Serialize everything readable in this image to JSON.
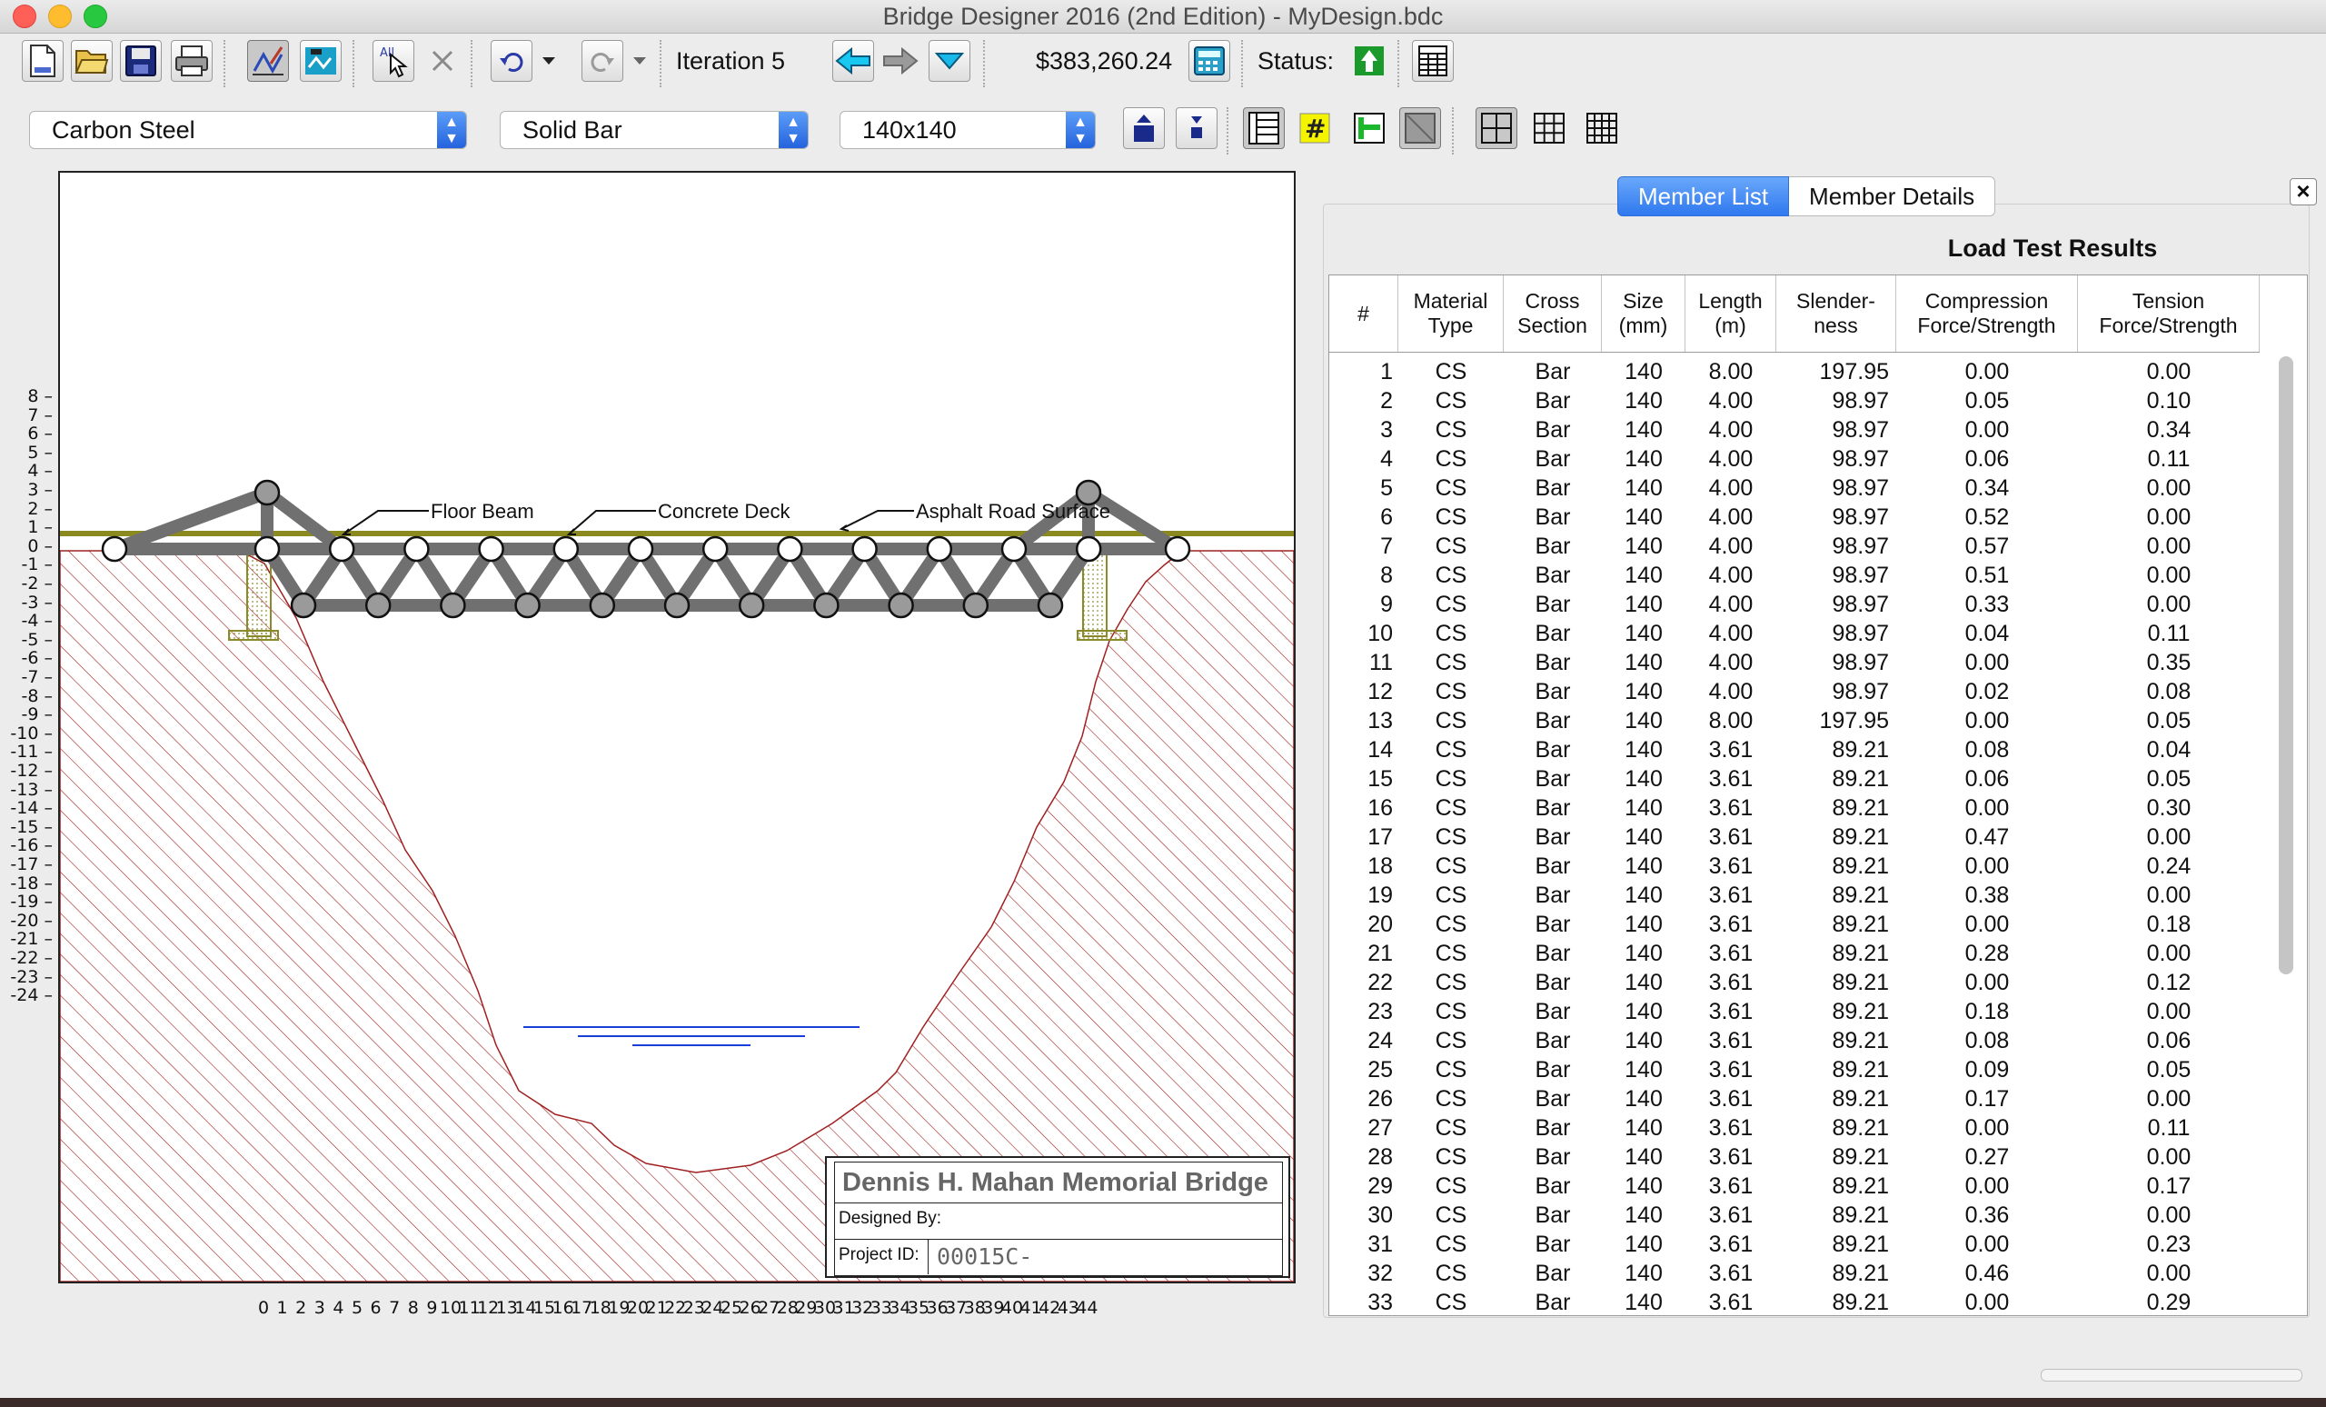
{
  "window": {
    "title": "Bridge Designer 2016 (2nd Edition) - MyDesign.bdc"
  },
  "toolbar": {
    "iteration_label": "Iteration 5",
    "cost": "$383,260.24",
    "status_label": "Status:",
    "buttons": [
      "new-document-icon",
      "open-folder-icon",
      "save-disk-icon",
      "print-icon",
      "draw-members-icon",
      "load-test-icon",
      "select-all-icon",
      "delete-icon",
      "undo-icon",
      "redo-icon",
      "back-arrow-icon",
      "forward-arrow-icon",
      "iteration-menu-icon",
      "calculator-icon",
      "status-ok-icon",
      "report-icon"
    ]
  },
  "selectors": {
    "material": "Carbon Steel",
    "section": "Solid Bar",
    "size": "140x140"
  },
  "drawing": {
    "labels": {
      "floor_beam": "Floor Beam",
      "concrete_deck": "Concrete Deck",
      "asphalt": "Asphalt Road Surface"
    },
    "y_ticks": [
      "8",
      "7",
      "6",
      "5",
      "4",
      "3",
      "2",
      "1",
      "0",
      "-1",
      "-2",
      "-3",
      "-4",
      "-5",
      "-6",
      "-7",
      "-8",
      "-9",
      "-10",
      "-11",
      "-12",
      "-13",
      "-14",
      "-15",
      "-16",
      "-17",
      "-18",
      "-19",
      "-20",
      "-21",
      "-22",
      "-23",
      "-24"
    ],
    "x_ticks": [
      "0",
      "1",
      "2",
      "3",
      "4",
      "5",
      "6",
      "7",
      "8",
      "9",
      "10",
      "11",
      "12",
      "13",
      "14",
      "15",
      "16",
      "17",
      "18",
      "19",
      "20",
      "21",
      "22",
      "23",
      "24",
      "25",
      "26",
      "27",
      "28",
      "29",
      "30",
      "31",
      "32",
      "33",
      "34",
      "35",
      "36",
      "37",
      "38",
      "39",
      "40",
      "41",
      "42",
      "43",
      "44"
    ],
    "title_block": {
      "bridge_name": "Dennis H. Mahan Memorial Bridge",
      "designed_by": "Designed By:",
      "project_id_label": "Project ID:",
      "project_id": "00015C-"
    }
  },
  "panel": {
    "tabs": [
      "Member List",
      "Member Details"
    ],
    "title": "Load Test Results",
    "columns": [
      "#",
      "Material\nType",
      "Cross\nSection",
      "Size\n(mm)",
      "Length\n(m)",
      "Slender-\nness",
      "Compression\nForce/Strength",
      "Tension\nForce/Strength"
    ],
    "rows": [
      [
        "1",
        "CS",
        "Bar",
        "140",
        "8.00",
        "197.95",
        "0.00",
        "0.00"
      ],
      [
        "2",
        "CS",
        "Bar",
        "140",
        "4.00",
        "98.97",
        "0.05",
        "0.10"
      ],
      [
        "3",
        "CS",
        "Bar",
        "140",
        "4.00",
        "98.97",
        "0.00",
        "0.34"
      ],
      [
        "4",
        "CS",
        "Bar",
        "140",
        "4.00",
        "98.97",
        "0.06",
        "0.11"
      ],
      [
        "5",
        "CS",
        "Bar",
        "140",
        "4.00",
        "98.97",
        "0.34",
        "0.00"
      ],
      [
        "6",
        "CS",
        "Bar",
        "140",
        "4.00",
        "98.97",
        "0.52",
        "0.00"
      ],
      [
        "7",
        "CS",
        "Bar",
        "140",
        "4.00",
        "98.97",
        "0.57",
        "0.00"
      ],
      [
        "8",
        "CS",
        "Bar",
        "140",
        "4.00",
        "98.97",
        "0.51",
        "0.00"
      ],
      [
        "9",
        "CS",
        "Bar",
        "140",
        "4.00",
        "98.97",
        "0.33",
        "0.00"
      ],
      [
        "10",
        "CS",
        "Bar",
        "140",
        "4.00",
        "98.97",
        "0.04",
        "0.11"
      ],
      [
        "11",
        "CS",
        "Bar",
        "140",
        "4.00",
        "98.97",
        "0.00",
        "0.35"
      ],
      [
        "12",
        "CS",
        "Bar",
        "140",
        "4.00",
        "98.97",
        "0.02",
        "0.08"
      ],
      [
        "13",
        "CS",
        "Bar",
        "140",
        "8.00",
        "197.95",
        "0.00",
        "0.05"
      ],
      [
        "14",
        "CS",
        "Bar",
        "140",
        "3.61",
        "89.21",
        "0.08",
        "0.04"
      ],
      [
        "15",
        "CS",
        "Bar",
        "140",
        "3.61",
        "89.21",
        "0.06",
        "0.05"
      ],
      [
        "16",
        "CS",
        "Bar",
        "140",
        "3.61",
        "89.21",
        "0.00",
        "0.30"
      ],
      [
        "17",
        "CS",
        "Bar",
        "140",
        "3.61",
        "89.21",
        "0.47",
        "0.00"
      ],
      [
        "18",
        "CS",
        "Bar",
        "140",
        "3.61",
        "89.21",
        "0.00",
        "0.24"
      ],
      [
        "19",
        "CS",
        "Bar",
        "140",
        "3.61",
        "89.21",
        "0.38",
        "0.00"
      ],
      [
        "20",
        "CS",
        "Bar",
        "140",
        "3.61",
        "89.21",
        "0.00",
        "0.18"
      ],
      [
        "21",
        "CS",
        "Bar",
        "140",
        "3.61",
        "89.21",
        "0.28",
        "0.00"
      ],
      [
        "22",
        "CS",
        "Bar",
        "140",
        "3.61",
        "89.21",
        "0.00",
        "0.12"
      ],
      [
        "23",
        "CS",
        "Bar",
        "140",
        "3.61",
        "89.21",
        "0.18",
        "0.00"
      ],
      [
        "24",
        "CS",
        "Bar",
        "140",
        "3.61",
        "89.21",
        "0.08",
        "0.06"
      ],
      [
        "25",
        "CS",
        "Bar",
        "140",
        "3.61",
        "89.21",
        "0.09",
        "0.05"
      ],
      [
        "26",
        "CS",
        "Bar",
        "140",
        "3.61",
        "89.21",
        "0.17",
        "0.00"
      ],
      [
        "27",
        "CS",
        "Bar",
        "140",
        "3.61",
        "89.21",
        "0.00",
        "0.11"
      ],
      [
        "28",
        "CS",
        "Bar",
        "140",
        "3.61",
        "89.21",
        "0.27",
        "0.00"
      ],
      [
        "29",
        "CS",
        "Bar",
        "140",
        "3.61",
        "89.21",
        "0.00",
        "0.17"
      ],
      [
        "30",
        "CS",
        "Bar",
        "140",
        "3.61",
        "89.21",
        "0.36",
        "0.00"
      ],
      [
        "31",
        "CS",
        "Bar",
        "140",
        "3.61",
        "89.21",
        "0.00",
        "0.23"
      ],
      [
        "32",
        "CS",
        "Bar",
        "140",
        "3.61",
        "89.21",
        "0.46",
        "0.00"
      ],
      [
        "33",
        "CS",
        "Bar",
        "140",
        "3.61",
        "89.21",
        "0.00",
        "0.29"
      ]
    ]
  },
  "colors": {
    "accent": "#2f78ef",
    "terrain_hatch": "#a02020",
    "member": "#707070",
    "deck": "#8a8a20",
    "water": "#1a3cd8",
    "status_ok": "#1a9a2a"
  }
}
